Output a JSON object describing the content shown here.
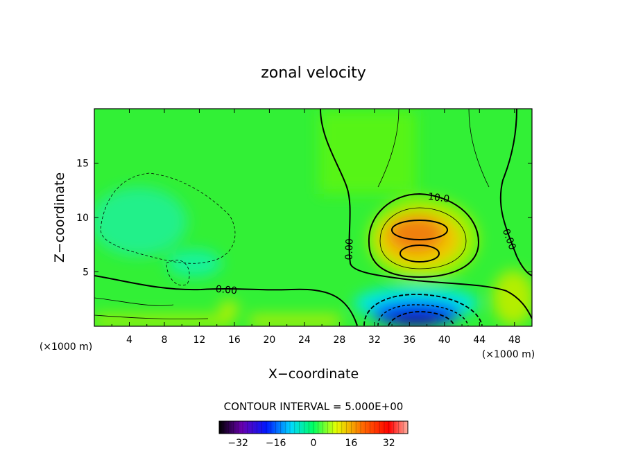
{
  "chart_data": {
    "type": "heatmap",
    "title": "zonal velocity",
    "xlabel": "X−coordinate",
    "ylabel": "Z−coordinate",
    "x_unit": "(×1000 m)",
    "x_unit_right": "(×1000 m)",
    "xlim": [
      0,
      50
    ],
    "ylim": [
      0,
      20
    ],
    "x_ticks": [
      "4",
      "8",
      "12",
      "16",
      "20",
      "24",
      "28",
      "32",
      "36",
      "40",
      "44",
      "48"
    ],
    "y_ticks": [
      "5",
      "10",
      "15"
    ],
    "contour_interval_text": "CONTOUR INTERVAL = 5.000E+00",
    "contour_labels": [
      "0.00",
      "10.0",
      "0.00",
      "0.00"
    ],
    "colorbar": {
      "range": [
        -40,
        40
      ],
      "ticks": [
        "−32",
        "−16",
        "0",
        "16",
        "32"
      ],
      "tick_values": [
        -32,
        -16,
        0,
        16,
        32
      ]
    },
    "field_features": [
      {
        "x": 37.5,
        "z": 8.5,
        "value": 20,
        "kind": "max"
      },
      {
        "x": 37.5,
        "z": 6.8,
        "value": 20,
        "kind": "max"
      },
      {
        "x": 37.5,
        "z": 0.8,
        "value": -25,
        "kind": "min"
      },
      {
        "x": 5,
        "z": 9,
        "value": -4,
        "kind": "min"
      },
      {
        "x": 12,
        "z": 5.5,
        "value": -4,
        "kind": "min"
      }
    ],
    "grid": false,
    "colormap": [
      "#000000",
      "#6a00b0",
      "#0018ff",
      "#00d8ff",
      "#00ff60",
      "#e6ff00",
      "#ff6a00",
      "#ff0000",
      "#ffb0a0"
    ]
  }
}
